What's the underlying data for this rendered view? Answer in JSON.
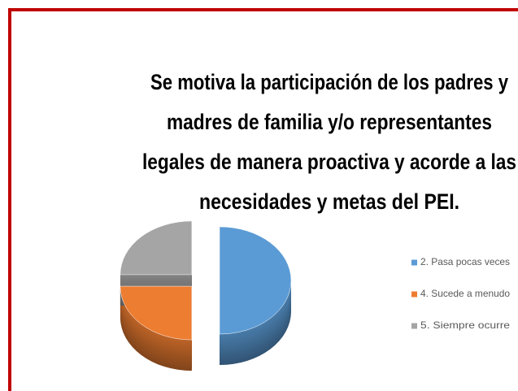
{
  "chart_data": {
    "type": "pie",
    "title": [
      "Se motiva la participación de los padres y",
      "madres de familia y/o representantes",
      "legales de manera proactiva y acorde a las",
      "necesidades y metas del PEI."
    ],
    "categories": [
      "2. Pasa pocas veces",
      "4. Sucede a menudo",
      "5. Siempre ocurre"
    ],
    "values": [
      50,
      25,
      25
    ],
    "colors": [
      "#5b9bd5",
      "#ed7d31",
      "#a5a5a5"
    ],
    "legend": "right"
  }
}
